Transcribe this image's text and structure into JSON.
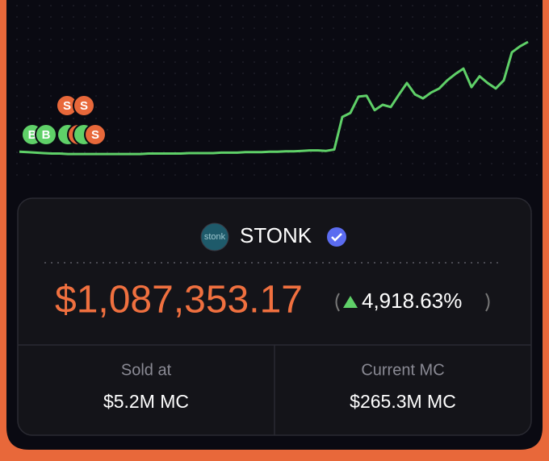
{
  "chart_data": {
    "type": "line",
    "series": [
      {
        "color": "#5fd068",
        "values": [
          12,
          11,
          10,
          9,
          8,
          8,
          7,
          7,
          7,
          7,
          7,
          7,
          7,
          7,
          7,
          7,
          8,
          8,
          8,
          8,
          8,
          9,
          9,
          9,
          9,
          10,
          10,
          10,
          11,
          11,
          11,
          12,
          12,
          13,
          13,
          14,
          15,
          15,
          14,
          17,
          89,
          98,
          134,
          136,
          104,
          116,
          111,
          138,
          164,
          139,
          130,
          143,
          152,
          170,
          184,
          196,
          155,
          179,
          164,
          152,
          170,
          232,
          245,
          255
        ]
      }
    ],
    "ylim": [
      0,
      280
    ],
    "grid": false
  },
  "trade_markers": [
    {
      "label": "B"
    },
    {
      "label": "B"
    },
    {
      "label": "S"
    },
    {
      "label": "S"
    },
    {
      "label": "S"
    }
  ],
  "token": {
    "logo": "stonk",
    "name": "STONK",
    "price": "$1,087,353.17",
    "change": "4,918.63%"
  },
  "stats": [
    {
      "label": "Sold at",
      "value": "$5.2M MC"
    },
    {
      "label": "Current MC",
      "value": "$265.3M MC"
    }
  ]
}
